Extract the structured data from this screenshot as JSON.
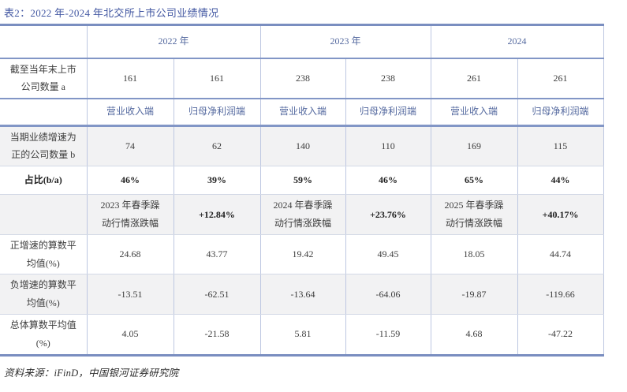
{
  "title": "表2：2022 年-2024 年北交所上市公司业绩情况",
  "source": "资料来源：iFinD，中国银河证券研究院",
  "table": {
    "year_headers": [
      "2022 年",
      "2023 年",
      "2024"
    ],
    "rows": [
      {
        "label": "截至当年末上市\n公司数量 a",
        "values": [
          "161",
          "161",
          "238",
          "238",
          "261",
          "261"
        ]
      },
      {
        "label": "",
        "values": [
          "营业收入端",
          "归母净利润端",
          "营业收入端",
          "归母净利润端",
          "营业收入端",
          "归母净利润端"
        ]
      },
      {
        "label": "当期业绩增速为\n正的公司数量 b",
        "values": [
          "74",
          "62",
          "140",
          "110",
          "169",
          "115"
        ]
      },
      {
        "label": "占比(b/a)",
        "values": [
          "46%",
          "39%",
          "59%",
          "46%",
          "65%",
          "44%"
        ]
      },
      {
        "label": "",
        "values": [
          "2023 年春季躁\n动行情涨跌幅",
          "+12.84%",
          "2024 年春季躁\n动行情涨跌幅",
          "+23.76%",
          "2025 年春季躁\n动行情涨跌幅",
          "+40.17%"
        ]
      },
      {
        "label": "正增速的算数平\n均值(%)",
        "values": [
          "24.68",
          "43.77",
          "19.42",
          "49.45",
          "18.05",
          "44.74"
        ]
      },
      {
        "label": "负增速的算数平\n均值(%)",
        "values": [
          "-13.51",
          "-62.51",
          "-13.64",
          "-64.06",
          "-19.87",
          "-119.66"
        ]
      },
      {
        "label": "总体算数平均值\n(%)",
        "values": [
          "4.05",
          "-21.58",
          "5.81",
          "-11.59",
          "4.68",
          "-47.22"
        ]
      }
    ]
  },
  "colors": {
    "title_blue": "#4257a2",
    "header_blue": "#54699f",
    "thick_border": "#7a8ec0",
    "thin_vertical": "#bdc7e1",
    "zebra_gray": "#f2f2f3"
  }
}
